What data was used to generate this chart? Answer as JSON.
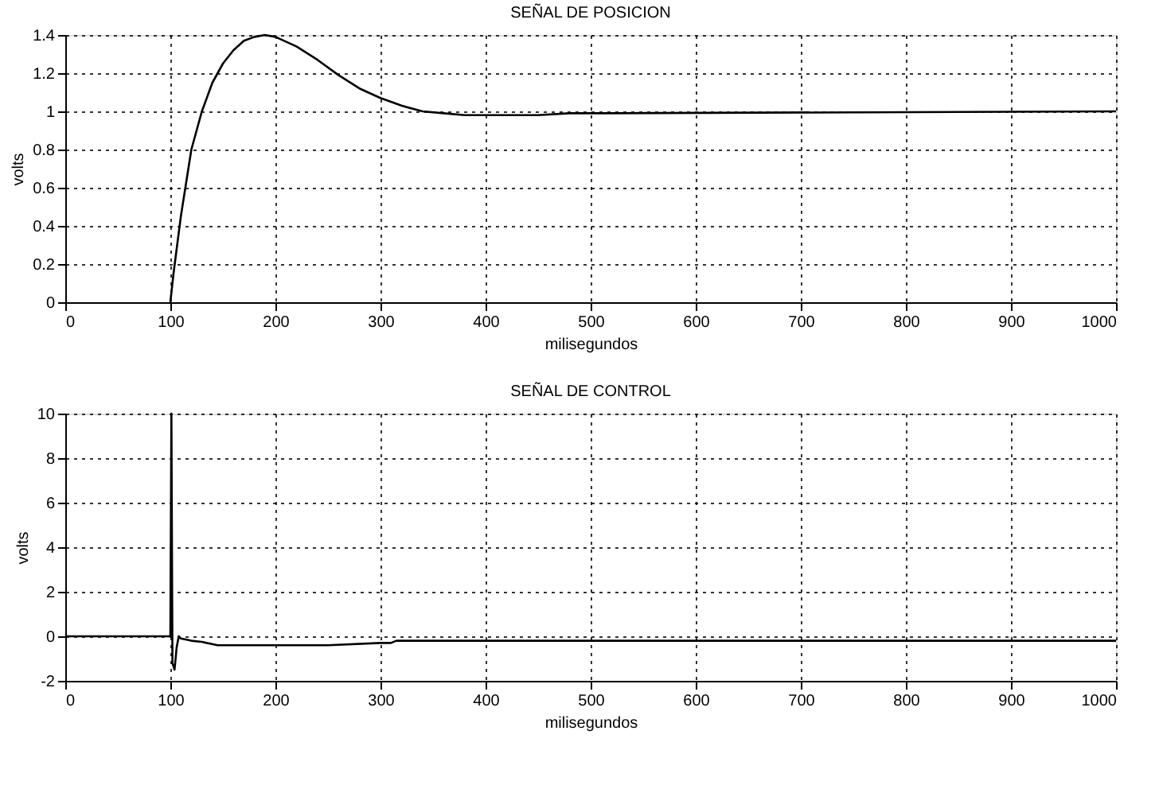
{
  "chart_data": [
    {
      "type": "line",
      "title": "SEÑAL DE POSICION",
      "xlabel": "milisegundos",
      "ylabel": "volts",
      "xlim": [
        0,
        1000
      ],
      "xticks": [
        0,
        100,
        200,
        300,
        400,
        500,
        600,
        700,
        800,
        900,
        1000
      ],
      "ylim": [
        0,
        1.4
      ],
      "yticks": [
        0,
        0.2,
        0.4,
        0.6,
        0.8,
        1,
        1.2,
        1.4
      ],
      "grid": true,
      "marker": "none",
      "line_style": "solid",
      "series": [
        {
          "color": "#000000",
          "x": [
            100,
            103,
            110,
            120,
            130,
            140,
            150,
            160,
            170,
            180,
            190,
            200,
            220,
            240,
            260,
            280,
            300,
            320,
            340,
            360,
            380,
            400,
            420,
            450,
            480,
            510,
            1000
          ],
          "values": [
            0,
            0.15,
            0.45,
            0.8,
            1.0,
            1.15,
            1.25,
            1.32,
            1.37,
            1.39,
            1.4,
            1.39,
            1.34,
            1.27,
            1.19,
            1.12,
            1.07,
            1.03,
            1.0,
            0.99,
            0.98,
            0.98,
            0.98,
            0.98,
            0.99,
            0.99,
            1.0
          ]
        }
      ]
    },
    {
      "type": "line",
      "title": "SEÑAL DE CONTROL",
      "xlabel": "milisegundos",
      "ylabel": "volts",
      "xlim": [
        0,
        1000
      ],
      "xticks": [
        0,
        100,
        200,
        300,
        400,
        500,
        600,
        700,
        800,
        900,
        1000
      ],
      "ylim": [
        -2,
        10
      ],
      "yticks": [
        -2,
        0,
        2,
        4,
        6,
        8,
        10
      ],
      "grid": true,
      "marker": "none",
      "line_style": "solid",
      "series": [
        {
          "color": "#000000",
          "x": [
            0,
            100,
            101,
            102,
            104,
            106,
            108,
            110,
            120,
            130,
            145,
            200,
            250,
            300,
            310,
            315,
            1000
          ],
          "values": [
            0,
            0,
            10,
            -1.2,
            -1.5,
            -0.5,
            0,
            -0.1,
            -0.2,
            -0.25,
            -0.4,
            -0.4,
            -0.4,
            -0.3,
            -0.3,
            -0.2,
            -0.2
          ]
        }
      ]
    }
  ]
}
